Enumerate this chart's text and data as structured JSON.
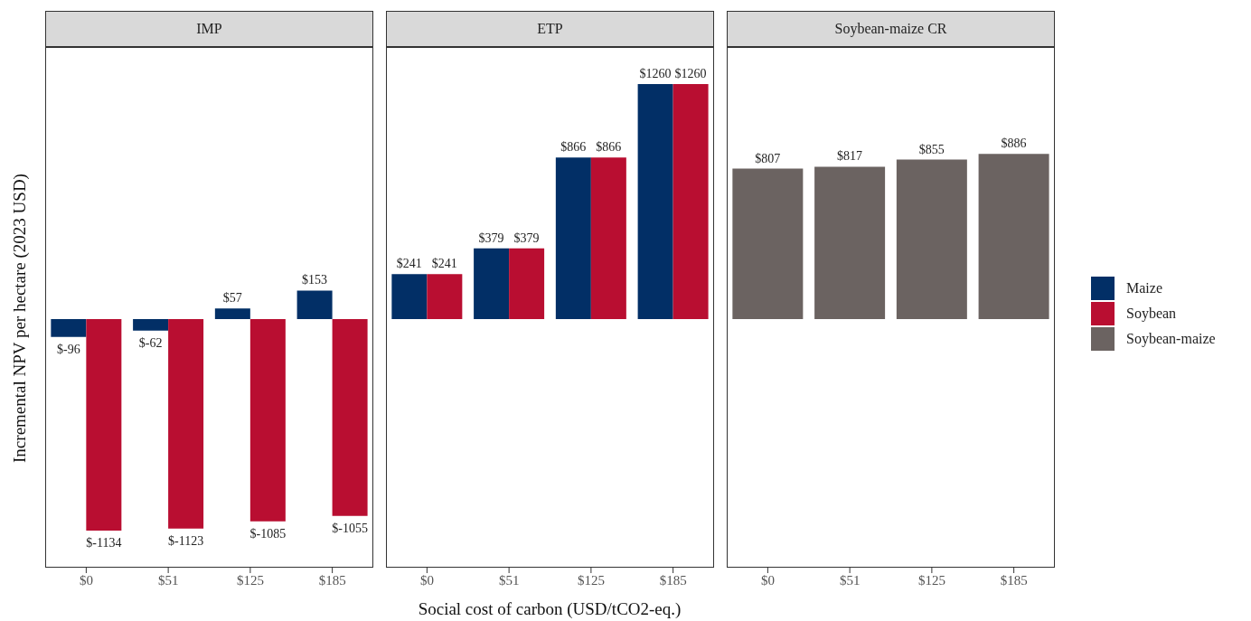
{
  "chart_data": [
    {
      "type": "bar",
      "title": "IMP",
      "ylabel": "Incremental NPV per hectare (2023 USD)",
      "categories": [
        "$0",
        "$51",
        "$125",
        "$185"
      ],
      "ylim": [
        -1333,
        1459
      ],
      "tick_labels": "x",
      "legend": "right",
      "series": [
        {
          "name": "Maize",
          "color": "#022f66",
          "values": [
            -96,
            -62,
            57,
            153
          ],
          "value_labels": [
            "$-96",
            "$-62",
            "$57",
            "$153"
          ]
        },
        {
          "name": "Soybean",
          "color": "#b90e31",
          "values": [
            -1134,
            -1123,
            -1085,
            -1055
          ],
          "value_labels": [
            "$-1134",
            "$-1123",
            "$-1085",
            "$-1055"
          ]
        }
      ]
    },
    {
      "type": "bar",
      "title": "ETP",
      "xlabel": "Social cost of carbon (USD/tCO2-eq.)",
      "categories": [
        "$0",
        "$51",
        "$125",
        "$185"
      ],
      "ylim": [
        -1333,
        1459
      ],
      "tick_labels": "x",
      "legend": "right",
      "series": [
        {
          "name": "Maize",
          "color": "#022f66",
          "values": [
            241,
            379,
            866,
            1260
          ],
          "value_labels": [
            "$241",
            "$379",
            "$866",
            "$1260"
          ]
        },
        {
          "name": "Soybean",
          "color": "#b90e31",
          "values": [
            241,
            379,
            866,
            1260
          ],
          "value_labels": [
            "$241",
            "$379",
            "$866",
            "$1260"
          ]
        }
      ]
    },
    {
      "type": "bar",
      "title": "Soybean-maize CR",
      "categories": [
        "$0",
        "$51",
        "$125",
        "$185"
      ],
      "ylim": [
        -1333,
        1459
      ],
      "tick_labels": "x",
      "legend": "right",
      "series": [
        {
          "name": "Soybean-maize",
          "color": "#6b6361",
          "values": [
            807,
            817,
            855,
            886
          ],
          "value_labels": [
            "$807",
            "$817",
            "$855",
            "$886"
          ]
        }
      ]
    }
  ]
}
